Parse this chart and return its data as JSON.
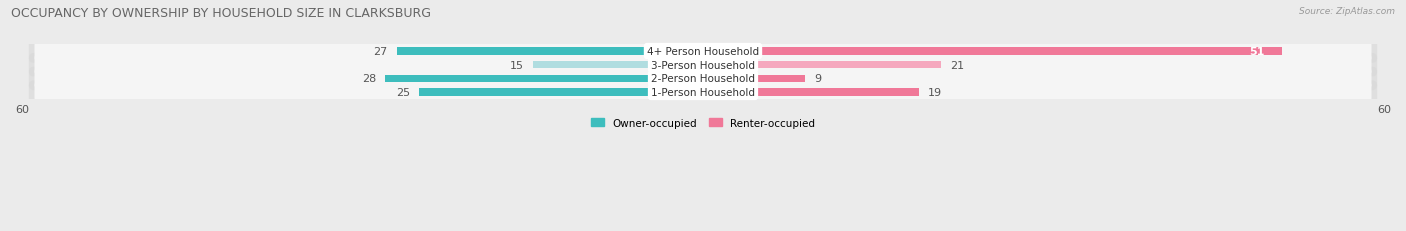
{
  "title": "OCCUPANCY BY OWNERSHIP BY HOUSEHOLD SIZE IN CLARKSBURG",
  "source": "Source: ZipAtlas.com",
  "categories": [
    "1-Person Household",
    "2-Person Household",
    "3-Person Household",
    "4+ Person Household"
  ],
  "owner_values": [
    25,
    28,
    15,
    27
  ],
  "renter_values": [
    19,
    9,
    21,
    51
  ],
  "owner_color": "#3dbdbd",
  "renter_color": "#f07898",
  "owner_color_light": "#b0dde0",
  "renter_color_light": "#f5a8be",
  "axis_max": 60,
  "legend_owner": "Owner-occupied",
  "legend_renter": "Renter-occupied",
  "bg_color": "#ebebeb",
  "row_bg_color": "#f5f5f5",
  "row_shadow_color": "#d8d8d8",
  "title_fontsize": 9,
  "label_fontsize": 7.5,
  "value_fontsize": 8,
  "tick_fontsize": 8,
  "figsize": [
    14.06,
    2.32
  ],
  "dpi": 100
}
